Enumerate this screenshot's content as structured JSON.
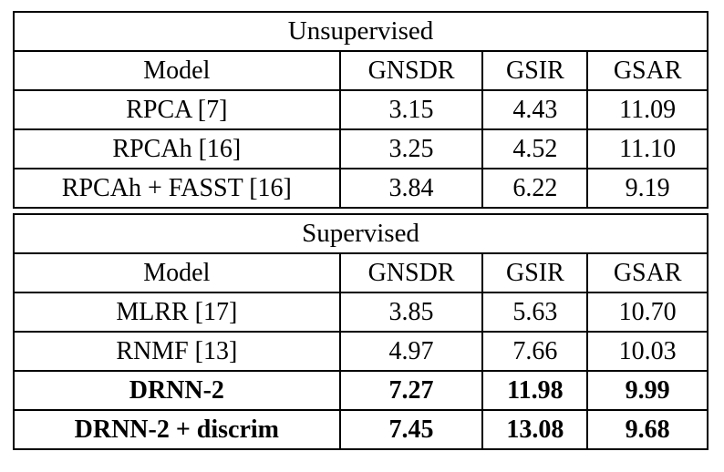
{
  "page": {
    "background": "#ffffff",
    "border_color": "#000000",
    "text_color": "#000000"
  },
  "tables": [
    {
      "title": "Unsupervised",
      "columns": [
        "Model",
        "GNSDR",
        "GSIR",
        "GSAR"
      ],
      "rows": [
        {
          "model": "RPCA [7]",
          "values": [
            "3.15",
            "4.43",
            "11.09"
          ],
          "bold": false
        },
        {
          "model": "RPCAh [16]",
          "values": [
            "3.25",
            "4.52",
            "11.10"
          ],
          "bold": false
        },
        {
          "model": "RPCAh + FASST [16]",
          "values": [
            "3.84",
            "6.22",
            "9.19"
          ],
          "bold": false
        }
      ]
    },
    {
      "title": "Supervised",
      "columns": [
        "Model",
        "GNSDR",
        "GSIR",
        "GSAR"
      ],
      "rows": [
        {
          "model": "MLRR [17]",
          "values": [
            "3.85",
            "5.63",
            "10.70"
          ],
          "bold": false
        },
        {
          "model": "RNMF [13]",
          "values": [
            "4.97",
            "7.66",
            "10.03"
          ],
          "bold": false
        },
        {
          "model": "DRNN-2",
          "values": [
            "7.27",
            "11.98",
            "9.99"
          ],
          "bold": true
        },
        {
          "model": "DRNN-2 + discrim",
          "values": [
            "7.45",
            "13.08",
            "9.68"
          ],
          "bold": true
        }
      ]
    }
  ]
}
